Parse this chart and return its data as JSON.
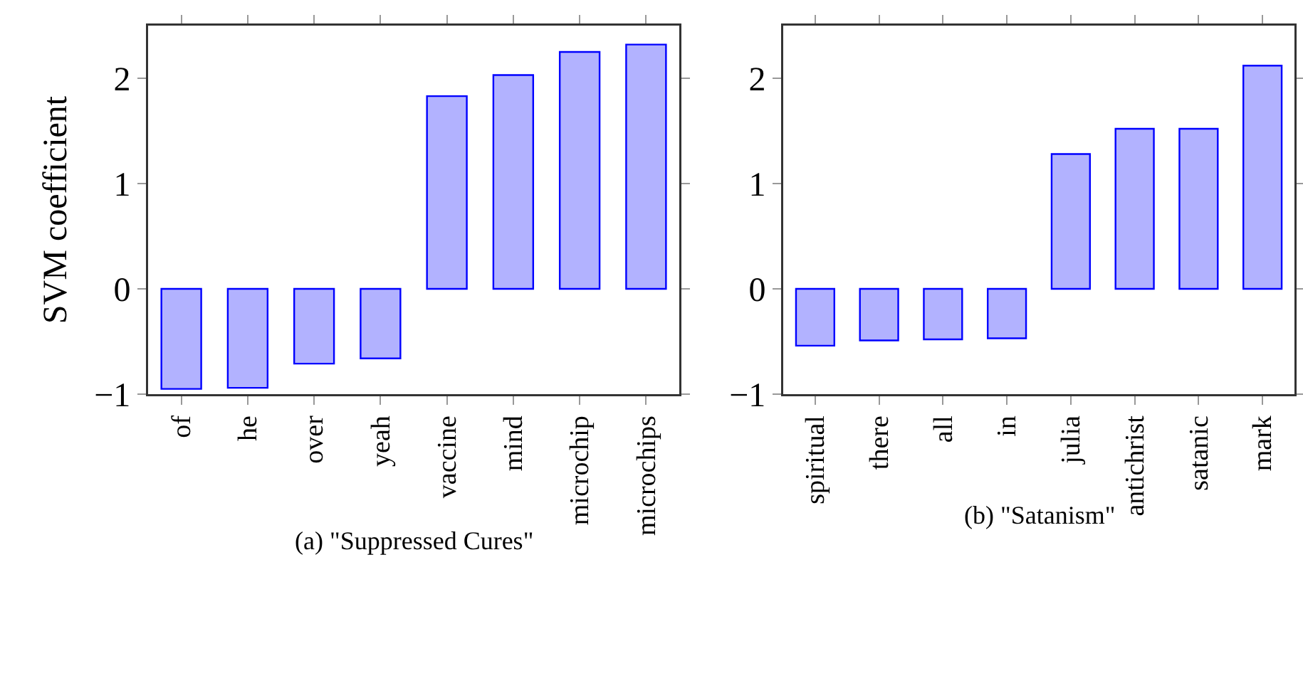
{
  "chart_data": [
    {
      "type": "bar",
      "ylabel": "SVM coefficient",
      "categories": [
        "of",
        "he",
        "over",
        "yeah",
        "vaccine",
        "mind",
        "microchip",
        "microchips"
      ],
      "series": [
        {
          "color": "#0000ff",
          "values": [
            -0.95,
            -0.94,
            -0.71,
            -0.66,
            1.83,
            2.03,
            2.25,
            2.32
          ]
        }
      ],
      "ylim": [
        -1,
        2.5
      ],
      "yticks": [
        {
          "value": -1,
          "label": "−1"
        },
        0,
        1,
        2
      ],
      "grid": false,
      "annotations": [
        "(a) \"Suppressed Cures\""
      ]
    },
    {
      "type": "bar",
      "categories": [
        "spiritual",
        "there",
        "all",
        "in",
        "julia",
        "antichrist",
        "satanic",
        "mark"
      ],
      "series": [
        {
          "color": "#0000ff",
          "values": [
            -0.54,
            -0.49,
            -0.48,
            -0.47,
            1.28,
            1.52,
            1.52,
            2.12
          ]
        }
      ],
      "ylim": [
        -1,
        2.5
      ],
      "yticks": [
        {
          "value": -1,
          "label": "−1"
        },
        0,
        1,
        2
      ],
      "grid": false,
      "annotations": [
        "(b) \"Satanism\""
      ]
    }
  ]
}
